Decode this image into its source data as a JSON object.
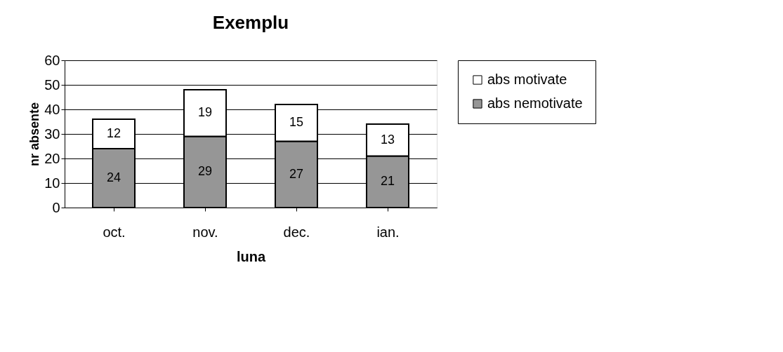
{
  "chart_data": {
    "type": "bar",
    "title": "Exemplu",
    "xlabel": "luna",
    "ylabel": "nr absente",
    "categories": [
      "oct.",
      "nov.",
      "dec.",
      "ian."
    ],
    "stacked": true,
    "series": [
      {
        "name": "abs nemotivate",
        "color": "#969696",
        "values": [
          24,
          29,
          27,
          21
        ]
      },
      {
        "name": "abs motivate",
        "color": "#ffffff",
        "values": [
          12,
          19,
          15,
          13
        ]
      }
    ],
    "ylim": [
      0,
      60
    ],
    "yticks": [
      0,
      10,
      20,
      30,
      40,
      50,
      60
    ],
    "grid": "y",
    "legend": "right",
    "data_labels": true
  }
}
